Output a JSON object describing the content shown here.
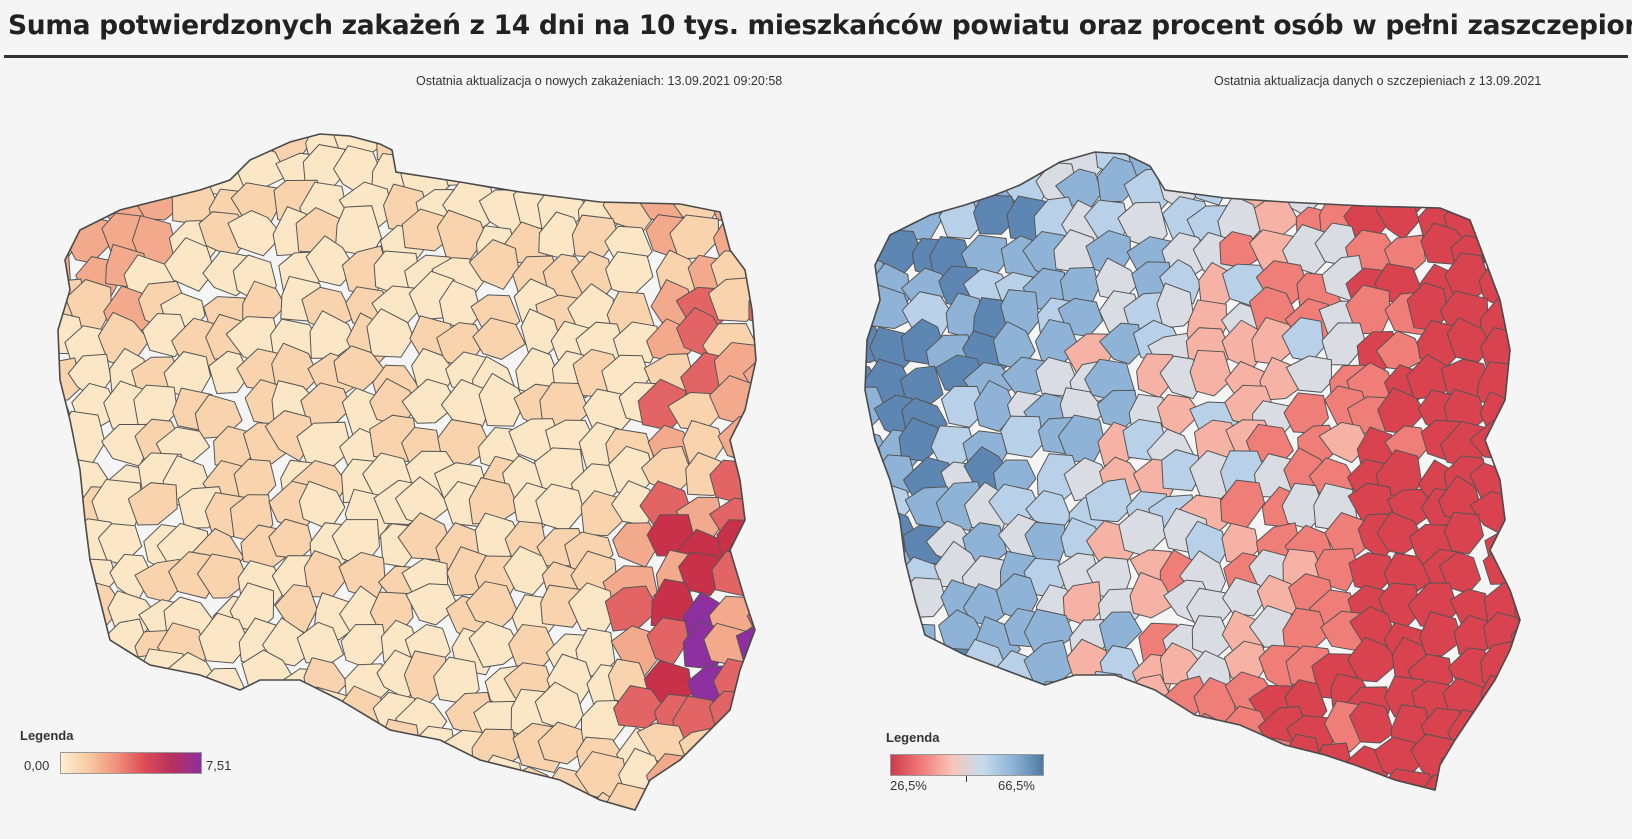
{
  "header": {
    "title": "Suma potwierdzonych zakażeń z 14 dni na 10 tys. mieszkańców powiatu oraz procent osób w pełni zaszczepionych"
  },
  "left_map": {
    "update_note": "Ostatnia aktualizacja o nowych zakażeniach: 13.09.2021 09:20:58",
    "legend": {
      "title": "Legenda",
      "min_label": "0,00",
      "max_label": "7,51",
      "gradient": [
        "#fbf0d5",
        "#f7c9a1",
        "#ef8f7a",
        "#dc4b55",
        "#b5305e",
        "#8e2fa0"
      ]
    },
    "palette": {
      "low": "#fbe7c6",
      "low_mid": "#f8d3ad",
      "mid": "#f3a98c",
      "high": "#e36464",
      "very_high": "#c9304a",
      "max": "#8e2fa0"
    }
  },
  "right_map": {
    "update_note": "Ostatnia aktualizacja danych o szczepieniach z 13.09.2021",
    "legend": {
      "title": "Legenda",
      "min_label": "26,5%",
      "max_label": "66,5%",
      "gradient": [
        "#cf3a4c",
        "#ef7b7a",
        "#f8c5b8",
        "#c7dced",
        "#8fb4d7",
        "#4f79a3"
      ]
    },
    "palette": {
      "very_low": "#d8434f",
      "low": "#ef7d78",
      "low_mid": "#f6b3a5",
      "neutral": "#d9dde3",
      "mid": "#b8d1e8",
      "high": "#8fb3d6",
      "very_high": "#5e86b2"
    }
  }
}
